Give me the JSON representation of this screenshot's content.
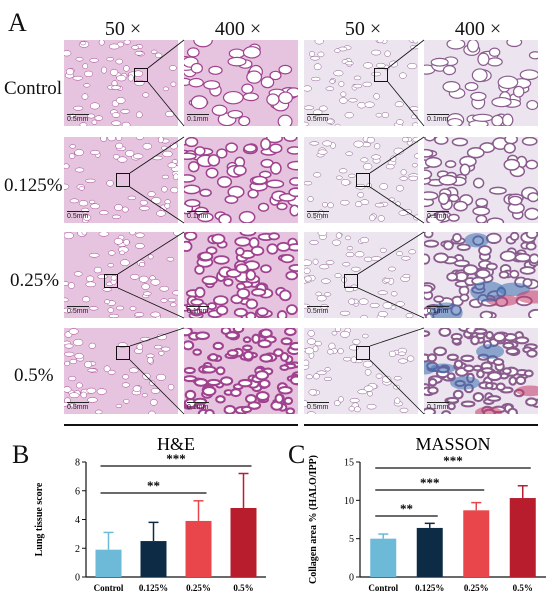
{
  "panel_a": {
    "letter": "A",
    "magnifications": [
      "50 ×",
      "400 ×",
      "50 ×",
      "400 ×"
    ],
    "row_labels": [
      "Control",
      "0.125%",
      "0.25%",
      "0.5%"
    ],
    "scale_label_50x": "0.5mm",
    "scale_label_400x": "0.1mm",
    "colors": {
      "he": "#e6c3df",
      "he_dark": "#a0428f",
      "masson": "#ece4ee",
      "masson_blue": "#3a6fb0",
      "masson_red": "#c43a6a"
    }
  },
  "chart_data": [
    {
      "panel_letter": "B",
      "type": "bar",
      "title": "H&E",
      "xlabel": "",
      "ylabel": "Lung tissue score",
      "categories": [
        "Control",
        "0.125%",
        "0.25%",
        "0.5%"
      ],
      "values": [
        1.9,
        2.5,
        3.9,
        4.8
      ],
      "errors": [
        1.2,
        1.3,
        1.4,
        2.4
      ],
      "colors": [
        "#6cbad8",
        "#0e2b45",
        "#e8464a",
        "#b81d2e"
      ],
      "ylim": [
        0,
        8
      ],
      "yticks": [
        0,
        2,
        4,
        6,
        8
      ],
      "significance": [
        {
          "from": 0,
          "to": 2,
          "label": "**"
        },
        {
          "from": 0,
          "to": 3,
          "label": "***"
        }
      ]
    },
    {
      "panel_letter": "C",
      "type": "bar",
      "title": "MASSON",
      "xlabel": "",
      "ylabel": "Collagen area % (HALO/IPP)",
      "categories": [
        "Control",
        "0.125%",
        "0.25%",
        "0.5%"
      ],
      "values": [
        5.0,
        6.4,
        8.7,
        10.3
      ],
      "errors": [
        0.6,
        0.6,
        1.0,
        1.6
      ],
      "colors": [
        "#6cbad8",
        "#0e2b45",
        "#e8464a",
        "#b81d2e"
      ],
      "ylim": [
        0,
        15
      ],
      "yticks": [
        0,
        5,
        10,
        15
      ],
      "significance": [
        {
          "from": 0,
          "to": 1,
          "label": "**"
        },
        {
          "from": 0,
          "to": 2,
          "label": "***"
        },
        {
          "from": 0,
          "to": 3,
          "label": "***"
        }
      ]
    }
  ]
}
